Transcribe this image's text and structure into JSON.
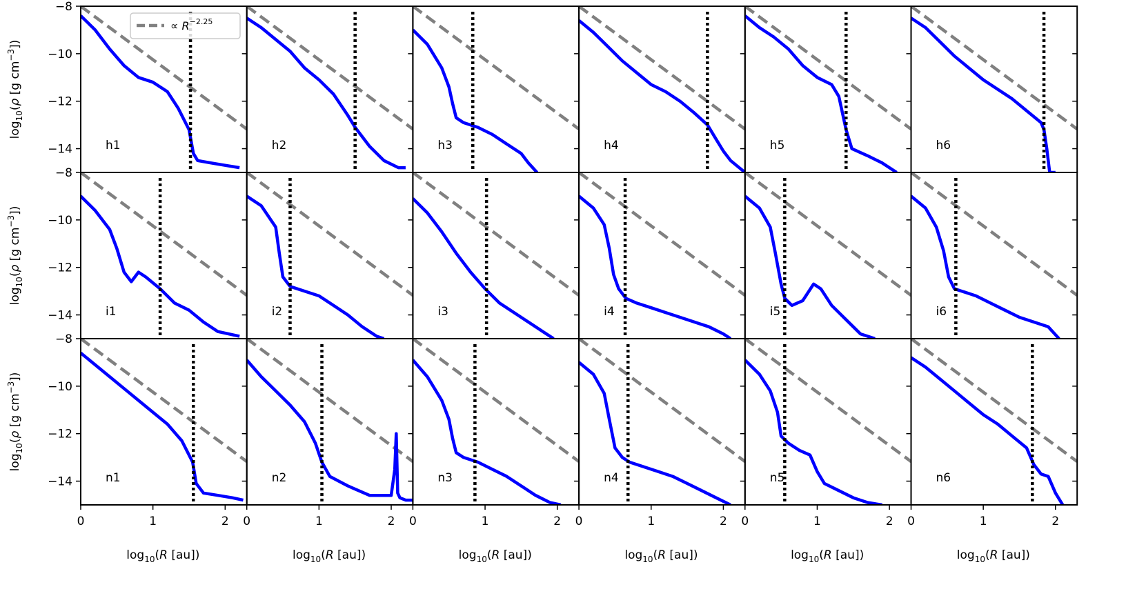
{
  "chart_data": {
    "type": "line",
    "layout": "grid 3 rows x 6 columns, shared axes",
    "xlim": [
      0,
      2.3
    ],
    "ylim": [
      -15,
      -8
    ],
    "xticks": [
      0,
      1,
      2
    ],
    "xtick_labels": [
      "0",
      "1",
      "2"
    ],
    "yticks": [
      -14,
      -12,
      -10,
      -8
    ],
    "ytick_labels": [
      "−14",
      "−12",
      "−10",
      "−8"
    ],
    "xlabel": "log10(R [au])",
    "ylabel": "log10(ρ [g cm⁻³])",
    "legend": {
      "label": "∝ R⁻²·²⁵",
      "placement": "top-left panel, upper area"
    },
    "reference_line": {
      "style": "dashed",
      "color": "#808080",
      "slope": -2.25,
      "intercept": -8
    },
    "series_color": "#0000ff",
    "marker_line": {
      "style": "dotted",
      "color": "#000000"
    },
    "panels": [
      {
        "label": "h1",
        "marker_x": 1.52,
        "x": [
          0,
          0.2,
          0.4,
          0.6,
          0.8,
          1.0,
          1.2,
          1.35,
          1.5,
          1.56,
          1.62,
          1.8,
          2.0,
          2.2
        ],
        "y": [
          -8.4,
          -9.0,
          -9.8,
          -10.5,
          -11.0,
          -11.2,
          -11.6,
          -12.3,
          -13.2,
          -14.2,
          -14.5,
          -14.6,
          -14.7,
          -14.8
        ]
      },
      {
        "label": "h2",
        "marker_x": 1.5,
        "x": [
          0,
          0.2,
          0.4,
          0.6,
          0.8,
          1.0,
          1.2,
          1.4,
          1.5,
          1.7,
          1.9,
          2.1,
          2.2
        ],
        "y": [
          -8.5,
          -8.9,
          -9.4,
          -9.9,
          -10.6,
          -11.1,
          -11.7,
          -12.6,
          -13.1,
          -13.9,
          -14.5,
          -14.8,
          -14.8
        ]
      },
      {
        "label": "h3",
        "marker_x": 0.83,
        "x": [
          0,
          0.2,
          0.4,
          0.5,
          0.55,
          0.6,
          0.7,
          0.9,
          1.1,
          1.3,
          1.5,
          1.6,
          1.72
        ],
        "y": [
          -9.0,
          -9.6,
          -10.6,
          -11.4,
          -12.1,
          -12.7,
          -12.9,
          -13.1,
          -13.4,
          -13.8,
          -14.2,
          -14.6,
          -15.0
        ]
      },
      {
        "label": "h4",
        "marker_x": 1.78,
        "x": [
          0,
          0.2,
          0.4,
          0.6,
          0.8,
          1.0,
          1.2,
          1.4,
          1.6,
          1.78,
          1.9,
          2.0,
          2.1,
          2.3
        ],
        "y": [
          -8.6,
          -9.1,
          -9.7,
          -10.3,
          -10.8,
          -11.3,
          -11.6,
          -12.0,
          -12.5,
          -13.0,
          -13.6,
          -14.1,
          -14.5,
          -15.0
        ]
      },
      {
        "label": "h5",
        "marker_x": 1.4,
        "x": [
          0,
          0.2,
          0.4,
          0.6,
          0.8,
          1.0,
          1.2,
          1.3,
          1.4,
          1.48,
          1.7,
          1.9,
          2.0,
          2.1
        ],
        "y": [
          -8.4,
          -8.9,
          -9.3,
          -9.8,
          -10.5,
          -11.0,
          -11.3,
          -11.8,
          -13.2,
          -14.0,
          -14.3,
          -14.6,
          -14.8,
          -15.0
        ]
      },
      {
        "label": "h6",
        "marker_x": 1.84,
        "x": [
          0,
          0.2,
          0.4,
          0.6,
          0.8,
          1.0,
          1.2,
          1.4,
          1.6,
          1.8,
          1.84,
          1.88,
          1.92,
          2.0
        ],
        "y": [
          -8.5,
          -8.9,
          -9.5,
          -10.1,
          -10.6,
          -11.1,
          -11.5,
          -11.9,
          -12.4,
          -12.9,
          -13.2,
          -14.0,
          -15.0,
          -15.0
        ]
      },
      {
        "label": "i1",
        "marker_x": 1.1,
        "x": [
          0,
          0.2,
          0.4,
          0.5,
          0.6,
          0.7,
          0.8,
          0.9,
          1.1,
          1.3,
          1.5,
          1.7,
          1.9,
          2.2
        ],
        "y": [
          -9.0,
          -9.6,
          -10.4,
          -11.2,
          -12.2,
          -12.6,
          -12.2,
          -12.4,
          -12.9,
          -13.5,
          -13.8,
          -14.3,
          -14.7,
          -14.9
        ]
      },
      {
        "label": "i2",
        "marker_x": 0.6,
        "x": [
          0,
          0.2,
          0.4,
          0.45,
          0.5,
          0.6,
          0.8,
          1.0,
          1.2,
          1.4,
          1.6,
          1.8,
          1.9
        ],
        "y": [
          -9.0,
          -9.4,
          -10.3,
          -11.4,
          -12.4,
          -12.8,
          -13.0,
          -13.2,
          -13.6,
          -14.0,
          -14.5,
          -14.9,
          -15.0
        ]
      },
      {
        "label": "i3",
        "marker_x": 1.02,
        "x": [
          0,
          0.2,
          0.4,
          0.6,
          0.8,
          1.0,
          1.2,
          1.4,
          1.6,
          1.8,
          1.95
        ],
        "y": [
          -9.1,
          -9.7,
          -10.5,
          -11.4,
          -12.2,
          -12.9,
          -13.5,
          -13.9,
          -14.3,
          -14.7,
          -15.0
        ]
      },
      {
        "label": "i4",
        "marker_x": 0.64,
        "x": [
          0,
          0.2,
          0.35,
          0.42,
          0.48,
          0.55,
          0.65,
          0.8,
          1.0,
          1.2,
          1.4,
          1.6,
          1.8,
          2.0,
          2.1
        ],
        "y": [
          -9.0,
          -9.5,
          -10.2,
          -11.2,
          -12.3,
          -12.9,
          -13.3,
          -13.5,
          -13.7,
          -13.9,
          -14.1,
          -14.3,
          -14.5,
          -14.8,
          -15.0
        ]
      },
      {
        "label": "i5",
        "marker_x": 0.55,
        "x": [
          0,
          0.2,
          0.35,
          0.42,
          0.5,
          0.55,
          0.65,
          0.8,
          0.95,
          1.05,
          1.2,
          1.4,
          1.6,
          1.8
        ],
        "y": [
          -9.0,
          -9.5,
          -10.3,
          -11.4,
          -12.7,
          -13.3,
          -13.6,
          -13.4,
          -12.7,
          -12.9,
          -13.6,
          -14.2,
          -14.8,
          -15.0
        ]
      },
      {
        "label": "i6",
        "marker_x": 0.62,
        "x": [
          0,
          0.2,
          0.35,
          0.45,
          0.52,
          0.6,
          0.7,
          0.9,
          1.1,
          1.3,
          1.5,
          1.7,
          1.9,
          2.05
        ],
        "y": [
          -9.0,
          -9.5,
          -10.3,
          -11.3,
          -12.4,
          -12.9,
          -13.0,
          -13.2,
          -13.5,
          -13.8,
          -14.1,
          -14.3,
          -14.5,
          -15.0
        ]
      },
      {
        "label": "n1",
        "marker_x": 1.56,
        "x": [
          0,
          0.2,
          0.4,
          0.6,
          0.8,
          1.0,
          1.2,
          1.4,
          1.55,
          1.6,
          1.7,
          1.9,
          2.1,
          2.25
        ],
        "y": [
          -8.6,
          -9.1,
          -9.6,
          -10.1,
          -10.6,
          -11.1,
          -11.6,
          -12.3,
          -13.2,
          -14.1,
          -14.5,
          -14.6,
          -14.7,
          -14.8
        ]
      },
      {
        "label": "n2",
        "marker_x": 1.04,
        "x": [
          0,
          0.2,
          0.4,
          0.6,
          0.8,
          0.95,
          1.04,
          1.15,
          1.4,
          1.7,
          2.0,
          2.05,
          2.07,
          2.09,
          2.12,
          2.2,
          2.3
        ],
        "y": [
          -8.9,
          -9.6,
          -10.2,
          -10.8,
          -11.5,
          -12.4,
          -13.2,
          -13.8,
          -14.2,
          -14.6,
          -14.6,
          -13.5,
          -12.0,
          -14.5,
          -14.7,
          -14.8,
          -14.8
        ]
      },
      {
        "label": "n3",
        "marker_x": 0.86,
        "x": [
          0,
          0.2,
          0.4,
          0.5,
          0.55,
          0.6,
          0.7,
          0.9,
          1.1,
          1.3,
          1.5,
          1.7,
          1.9,
          2.05
        ],
        "y": [
          -8.9,
          -9.6,
          -10.6,
          -11.4,
          -12.2,
          -12.8,
          -13.0,
          -13.2,
          -13.5,
          -13.8,
          -14.2,
          -14.6,
          -14.9,
          -15.0
        ]
      },
      {
        "label": "n4",
        "marker_x": 0.68,
        "x": [
          0,
          0.2,
          0.35,
          0.42,
          0.5,
          0.6,
          0.7,
          0.9,
          1.1,
          1.3,
          1.5,
          1.7,
          1.9,
          2.1
        ],
        "y": [
          -9.0,
          -9.5,
          -10.3,
          -11.4,
          -12.6,
          -13.0,
          -13.2,
          -13.4,
          -13.6,
          -13.8,
          -14.1,
          -14.4,
          -14.7,
          -15.0
        ]
      },
      {
        "label": "n5",
        "marker_x": 0.55,
        "x": [
          0,
          0.2,
          0.35,
          0.45,
          0.5,
          0.6,
          0.75,
          0.9,
          1.0,
          1.1,
          1.3,
          1.5,
          1.7,
          1.9
        ],
        "y": [
          -8.9,
          -9.5,
          -10.2,
          -11.1,
          -12.1,
          -12.4,
          -12.7,
          -12.9,
          -13.6,
          -14.1,
          -14.4,
          -14.7,
          -14.9,
          -15.0
        ]
      },
      {
        "label": "n6",
        "marker_x": 1.68,
        "x": [
          0,
          0.2,
          0.4,
          0.6,
          0.8,
          1.0,
          1.2,
          1.4,
          1.6,
          1.7,
          1.8,
          1.9,
          2.0,
          2.1
        ],
        "y": [
          -8.8,
          -9.2,
          -9.7,
          -10.2,
          -10.7,
          -11.2,
          -11.6,
          -12.1,
          -12.6,
          -13.3,
          -13.7,
          -13.8,
          -14.5,
          -15.0
        ]
      }
    ]
  }
}
